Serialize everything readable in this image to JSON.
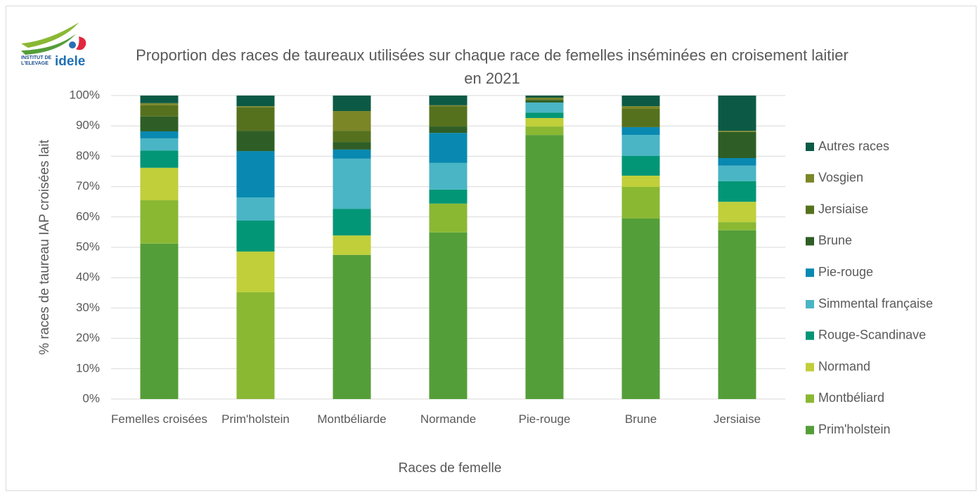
{
  "logo": {
    "line1": "INSTITUT DE",
    "line2": "L'ELEVAGE",
    "brand": "idele"
  },
  "chart_data": {
    "type": "stacked_bar",
    "title": "Proportion des races de taureaux utilisées sur chaque race de femelles inséminées en croisement laitier en 2021",
    "x_label": "Races de femelle",
    "y_label": "% races de taureau IAP croisées lait",
    "categories": [
      "Femelles croisées",
      "Prim'holstein",
      "Montbéliarde",
      "Normande",
      "Pie-rouge",
      "Brune",
      "Jersiaise"
    ],
    "series": [
      {
        "name": "Prim'holstein",
        "color": "#549e39",
        "values": [
          51.2,
          0,
          47.5,
          54.9,
          87.0,
          59.5,
          55.6
        ]
      },
      {
        "name": "Montbéliard",
        "color": "#8ab833",
        "values": [
          14.3,
          35.2,
          0,
          9.5,
          2.8,
          10.4,
          2.7
        ]
      },
      {
        "name": "Normand",
        "color": "#c0cf3a",
        "values": [
          10.7,
          13.4,
          6.4,
          0,
          2.8,
          3.7,
          6.7
        ]
      },
      {
        "name": "Rouge-Scandinave",
        "color": "#029676",
        "values": [
          5.7,
          10.2,
          8.8,
          4.6,
          1.8,
          6.5,
          6.8
        ]
      },
      {
        "name": "Simmental française",
        "color": "#4ab5c4",
        "values": [
          4.0,
          7.6,
          16.5,
          8.8,
          3.3,
          6.9,
          5.1
        ]
      },
      {
        "name": "Pie-rouge",
        "color": "#0989b1",
        "values": [
          2.3,
          15.3,
          3.0,
          9.9,
          0,
          2.6,
          2.5
        ]
      },
      {
        "name": "Brune",
        "color": "#2e5e26",
        "values": [
          4.9,
          6.7,
          2.5,
          2.1,
          0.7,
          0,
          8.6
        ]
      },
      {
        "name": "Jersiaise",
        "color": "#56711e",
        "values": [
          3.7,
          7.7,
          3.7,
          6.7,
          0.4,
          6.0,
          0
        ]
      },
      {
        "name": "Vosgien",
        "color": "#7b8627",
        "values": [
          0.7,
          0.4,
          6.5,
          0.3,
          0.5,
          0.9,
          0.4
        ]
      },
      {
        "name": "Autres races",
        "color": "#0c5a45",
        "values": [
          2.5,
          3.5,
          5.1,
          3.2,
          0.7,
          3.5,
          11.6
        ]
      }
    ],
    "ylim": [
      0,
      100
    ],
    "yticks": [
      {
        "value": 0,
        "label": "0%"
      },
      {
        "value": 10,
        "label": "10%"
      },
      {
        "value": 20,
        "label": "20%"
      },
      {
        "value": 30,
        "label": "30%"
      },
      {
        "value": 40,
        "label": "40%"
      },
      {
        "value": 50,
        "label": "50%"
      },
      {
        "value": 60,
        "label": "60%"
      },
      {
        "value": 70,
        "label": "70%"
      },
      {
        "value": 80,
        "label": "80%"
      },
      {
        "value": 90,
        "label": "90%"
      },
      {
        "value": 100,
        "label": "100%"
      }
    ],
    "grid": true,
    "legend": "right"
  }
}
